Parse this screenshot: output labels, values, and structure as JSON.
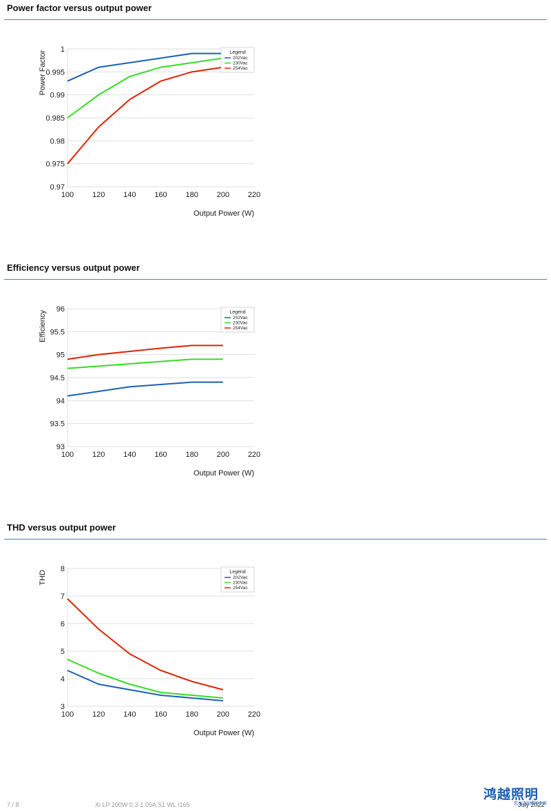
{
  "page": {
    "footer_page": "7 / 8",
    "footer_doc": "Xi LP 200W 0.3-1.05A S1 WL I165",
    "footer_date": "July 2022",
    "watermark_main": "鸿越照明",
    "watermark_sub": "您身边的照明专家"
  },
  "colors": {
    "rule": "#4a7fd0",
    "series_202": "#1a5fb4",
    "series_230": "#33dd22",
    "series_254": "#dd2200"
  },
  "chart_data": [
    {
      "type": "line",
      "section_title": "Power factor versus output power",
      "title": "",
      "xlabel": "Output Power (W)",
      "ylabel": "Power Factor",
      "xlim": [
        100,
        220
      ],
      "ylim": [
        0.97,
        1
      ],
      "xticks": [
        100,
        120,
        140,
        160,
        180,
        200,
        220
      ],
      "yticks": [
        0.97,
        0.975,
        0.98,
        0.985,
        0.99,
        0.995,
        1
      ],
      "ytick_labels": [
        "0.97",
        "0.975",
        "0.98",
        "0.985",
        "0.99",
        "0.995",
        "1"
      ],
      "grid": true,
      "legend_title": "Legend",
      "legend_position": "top-right",
      "x": [
        100,
        120,
        140,
        160,
        180,
        200
      ],
      "series": [
        {
          "name": "202Vac",
          "color": "#1a5fb4",
          "values": [
            0.993,
            0.996,
            0.997,
            0.998,
            0.999,
            0.999
          ]
        },
        {
          "name": "230Vac",
          "color": "#33dd22",
          "values": [
            0.985,
            0.99,
            0.994,
            0.996,
            0.997,
            0.998
          ]
        },
        {
          "name": "254Vac",
          "color": "#dd2200",
          "values": [
            0.975,
            0.983,
            0.989,
            0.993,
            0.995,
            0.996
          ]
        }
      ]
    },
    {
      "type": "line",
      "section_title": "Efficiency versus output power",
      "title": "",
      "xlabel": "Output Power (W)",
      "ylabel": "Efficiency",
      "xlim": [
        100,
        220
      ],
      "ylim": [
        93,
        96
      ],
      "xticks": [
        100,
        120,
        140,
        160,
        180,
        200,
        220
      ],
      "yticks": [
        93,
        93.5,
        94,
        94.5,
        95,
        95.5,
        96
      ],
      "ytick_labels": [
        "93",
        "93.5",
        "94",
        "94.5",
        "95",
        "95.5",
        "96"
      ],
      "grid": true,
      "legend_title": "Legend",
      "legend_position": "top-right",
      "x": [
        100,
        120,
        140,
        160,
        180,
        200
      ],
      "series": [
        {
          "name": "202Vac",
          "color": "#1a5fb4",
          "values": [
            94.1,
            94.2,
            94.3,
            94.35,
            94.4,
            94.4
          ]
        },
        {
          "name": "230Vac",
          "color": "#33dd22",
          "values": [
            94.7,
            94.75,
            94.8,
            94.85,
            94.9,
            94.9
          ]
        },
        {
          "name": "254Vac",
          "color": "#dd2200",
          "values": [
            94.9,
            95.0,
            95.07,
            95.14,
            95.2,
            95.2
          ]
        }
      ]
    },
    {
      "type": "line",
      "section_title": "THD versus output power",
      "title": "",
      "xlabel": "Output Power (W)",
      "ylabel": "THD",
      "xlim": [
        100,
        220
      ],
      "ylim": [
        3,
        8
      ],
      "xticks": [
        100,
        120,
        140,
        160,
        180,
        200,
        220
      ],
      "yticks": [
        3,
        4,
        5,
        6,
        7,
        8
      ],
      "ytick_labels": [
        "3",
        "4",
        "5",
        "6",
        "7",
        "8"
      ],
      "grid": true,
      "legend_title": "Legend",
      "legend_position": "top-right",
      "x": [
        100,
        120,
        140,
        160,
        180,
        200
      ],
      "series": [
        {
          "name": "202Vac",
          "color": "#1a5fb4",
          "values": [
            4.3,
            3.8,
            3.6,
            3.4,
            3.3,
            3.2
          ]
        },
        {
          "name": "230Vac",
          "color": "#33dd22",
          "values": [
            4.7,
            4.2,
            3.8,
            3.5,
            3.4,
            3.3
          ]
        },
        {
          "name": "254Vac",
          "color": "#dd2200",
          "values": [
            6.9,
            5.8,
            4.9,
            4.3,
            3.9,
            3.6
          ]
        }
      ]
    }
  ]
}
